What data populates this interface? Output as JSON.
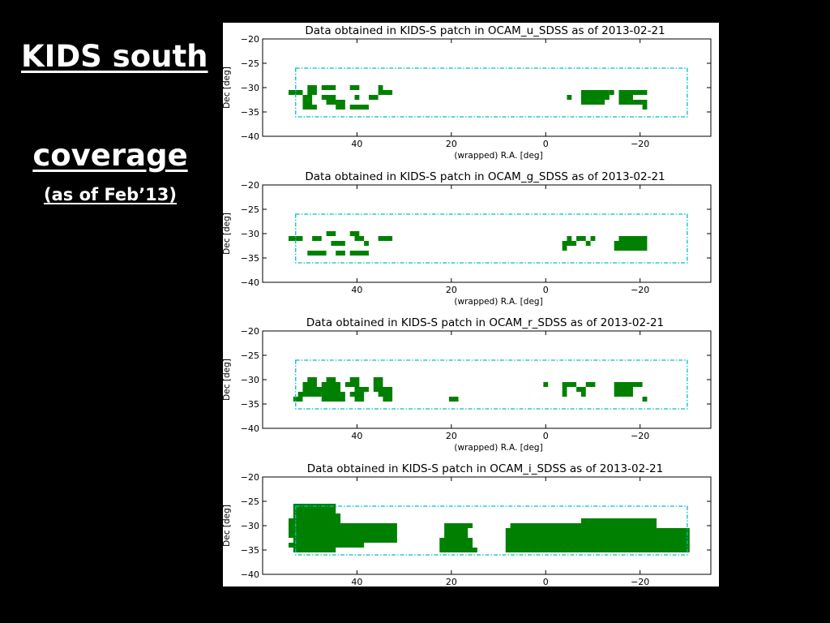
{
  "slide": {
    "title_line1": "KIDS south ",
    "title_line2": "coverage",
    "subtitle": "(as of Feb’13)"
  },
  "colors": {
    "tile": "#008000",
    "patch_outline": "#00bfbf",
    "figure_bg": "#ffffff"
  },
  "chart_data": [
    {
      "type": "scatter",
      "title": "Data obtained in KIDS-S patch in OCAM_u_SDSS as of 2013-02-21",
      "xlabel": "(wrapped) R.A. [deg]",
      "ylabel": "Dec [deg]",
      "xlim": [
        60,
        -35
      ],
      "ylim": [
        -40,
        -20
      ],
      "xticks": [
        "40",
        "20",
        "0",
        "−20"
      ],
      "yticks": [
        "−20",
        "−25",
        "−30",
        "−35",
        "−40"
      ],
      "grid": false,
      "patch_boundary": {
        "ra": [
          53,
          -30
        ],
        "dec": [
          -36,
          -26
        ],
        "style": "dash-dot"
      },
      "tile_size_deg": [
        1,
        1
      ],
      "series": [
        {
          "segments": [
            [
              -31,
              54,
              52
            ],
            [
              -32,
              51,
              50
            ],
            [
              -33,
              51,
              50
            ],
            [
              -34,
              51,
              49
            ],
            [
              -30,
              50,
              49
            ],
            [
              -31,
              50,
              49
            ],
            [
              -30,
              47,
              45
            ],
            [
              -32,
              47,
              45
            ],
            [
              -33,
              46,
              43
            ],
            [
              -34,
              44,
              43
            ],
            [
              -30,
              41,
              40
            ],
            [
              -32,
              40,
              40
            ],
            [
              -34,
              41,
              38
            ],
            [
              -30,
              35,
              35
            ],
            [
              -31,
              35,
              33
            ],
            [
              -32,
              37,
              36
            ],
            [
              -32,
              -5,
              -5
            ],
            [
              -31,
              -5,
              -4
            ],
            [
              -31,
              -8,
              -13
            ],
            [
              -32,
              -8,
              -12
            ],
            [
              -33,
              -8,
              -12
            ],
            [
              -31,
              -14,
              -14
            ],
            [
              -32,
              -13,
              -13
            ],
            [
              -31,
              -16,
              -21
            ],
            [
              -32,
              -16,
              -18
            ],
            [
              -33,
              -16,
              -21
            ],
            [
              -34,
              -21,
              -21
            ]
          ]
        }
      ]
    },
    {
      "type": "scatter",
      "title": "Data obtained in KIDS-S patch in OCAM_g_SDSS as of 2013-02-21",
      "xlabel": "(wrapped) R.A. [deg]",
      "ylabel": "Dec [deg]",
      "xlim": [
        60,
        -35
      ],
      "ylim": [
        -40,
        -20
      ],
      "xticks": [
        "40",
        "20",
        "0",
        "−20"
      ],
      "yticks": [
        "−20",
        "−25",
        "−30",
        "−35",
        "−40"
      ],
      "grid": false,
      "patch_boundary": {
        "ra": [
          53,
          -30
        ],
        "dec": [
          -36,
          -26
        ],
        "style": "dash-dot"
      },
      "tile_size_deg": [
        1,
        1
      ],
      "series": [
        {
          "segments": [
            [
              -31,
              54,
              52
            ],
            [
              -31,
              49,
              48
            ],
            [
              -30,
              46,
              45
            ],
            [
              -32,
              45,
              43
            ],
            [
              -34,
              50,
              47
            ],
            [
              -34,
              44,
              43
            ],
            [
              -30,
              41,
              40
            ],
            [
              -31,
              40,
              39
            ],
            [
              -32,
              38,
              38
            ],
            [
              -34,
              41,
              38
            ],
            [
              -31,
              35,
              33
            ],
            [
              -31,
              -5,
              -5
            ],
            [
              -32,
              -4,
              -6
            ],
            [
              -33,
              -4,
              -4
            ],
            [
              -31,
              -7,
              -8
            ],
            [
              -32,
              -9,
              -9
            ],
            [
              -31,
              -10,
              -10
            ],
            [
              -31,
              -16,
              -21
            ],
            [
              -32,
              -15,
              -21
            ],
            [
              -33,
              -15,
              -21
            ]
          ]
        }
      ]
    },
    {
      "type": "scatter",
      "title": "Data obtained in KIDS-S patch in OCAM_r_SDSS as of 2013-02-21",
      "xlabel": "(wrapped) R.A. [deg]",
      "ylabel": "Dec [deg]",
      "xlim": [
        60,
        -35
      ],
      "ylim": [
        -40,
        -20
      ],
      "xticks": [
        "40",
        "20",
        "0",
        "−20"
      ],
      "yticks": [
        "−20",
        "−25",
        "−30",
        "−35",
        "−40"
      ],
      "grid": false,
      "patch_boundary": {
        "ra": [
          53,
          -30
        ],
        "dec": [
          -36,
          -26
        ],
        "style": "dash-dot"
      },
      "tile_size_deg": [
        1,
        1
      ],
      "series": [
        {
          "segments": [
            [
              -30,
              50,
              49
            ],
            [
              -31,
              51,
              49
            ],
            [
              -32,
              51,
              48
            ],
            [
              -33,
              52,
              48
            ],
            [
              -34,
              53,
              52
            ],
            [
              -30,
              46,
              45
            ],
            [
              -31,
              47,
              44
            ],
            [
              -32,
              48,
              44
            ],
            [
              -33,
              47,
              43
            ],
            [
              -34,
              47,
              43
            ],
            [
              -30,
              41,
              40
            ],
            [
              -31,
              42,
              40
            ],
            [
              -32,
              40,
              38
            ],
            [
              -33,
              41,
              39
            ],
            [
              -34,
              40,
              39
            ],
            [
              -30,
              36,
              35
            ],
            [
              -31,
              36,
              35
            ],
            [
              -32,
              36,
              33
            ],
            [
              -33,
              35,
              33
            ],
            [
              -34,
              34,
              33
            ],
            [
              -34,
              20,
              19
            ],
            [
              -31,
              0,
              0
            ],
            [
              -31,
              -4,
              -6
            ],
            [
              -32,
              -4,
              -4
            ],
            [
              -33,
              -4,
              -4
            ],
            [
              -32,
              -7,
              -8
            ],
            [
              -33,
              -8,
              -8
            ],
            [
              -31,
              -9,
              -10
            ],
            [
              -31,
              -15,
              -20
            ],
            [
              -32,
              -15,
              -18
            ],
            [
              -33,
              -15,
              -18
            ],
            [
              -34,
              -21,
              -21
            ]
          ]
        }
      ]
    },
    {
      "type": "scatter",
      "title": "Data obtained in KIDS-S patch in OCAM_i_SDSS as of 2013-02-21",
      "xlabel": "",
      "ylabel": "Dec [deg]",
      "xlim": [
        60,
        -35
      ],
      "ylim": [
        -40,
        -20
      ],
      "xticks": [
        "40",
        "20",
        "0",
        "−20"
      ],
      "yticks": [
        "−20",
        "−25",
        "−30",
        "−35",
        "−40"
      ],
      "grid": false,
      "patch_boundary": {
        "ra": [
          53,
          -30
        ],
        "dec": [
          -36,
          -26
        ],
        "style": "dash-dot"
      },
      "tile_size_deg": [
        1,
        1
      ],
      "series": [
        {
          "segments": [
            [
              -26,
              53,
              45
            ],
            [
              -27,
              53,
              45
            ],
            [
              -28,
              53,
              44
            ],
            [
              -29,
              54,
              44
            ],
            [
              -30,
              54,
              32
            ],
            [
              -31,
              54,
              32
            ],
            [
              -32,
              54,
              32
            ],
            [
              -33,
              53,
              32
            ],
            [
              -34,
              54,
              39
            ],
            [
              -35,
              53,
              45
            ],
            [
              -30,
              21,
              16
            ],
            [
              -31,
              21,
              17
            ],
            [
              -32,
              21,
              17
            ],
            [
              -33,
              22,
              16
            ],
            [
              -34,
              22,
              16
            ],
            [
              -35,
              22,
              15
            ],
            [
              -29,
              -8,
              -23
            ],
            [
              -30,
              7,
              -23
            ],
            [
              -31,
              8,
              -30
            ],
            [
              -32,
              8,
              -30
            ],
            [
              -33,
              8,
              -30
            ],
            [
              -34,
              8,
              -30
            ],
            [
              -35,
              8,
              -30
            ]
          ]
        }
      ]
    }
  ]
}
